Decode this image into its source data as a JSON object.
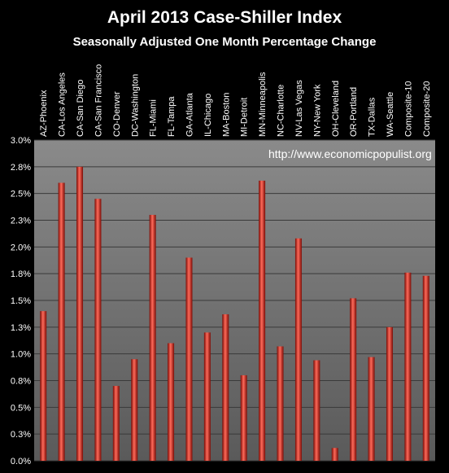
{
  "chart_data": {
    "type": "bar",
    "title": "April 2013 Case-Shiller Index",
    "subtitle": "Seasonally Adjusted One Month Percentage Change",
    "annotation": "http://www.economicpopulist.org",
    "categories": [
      "AZ-Phoenix",
      "CA-Los Angeles",
      "CA-San Diego",
      "CA-San Francisco",
      "CO-Denver",
      "DC-Washington",
      "FL-Miami",
      "FL-Tampa",
      "GA-Atlanta",
      "IL-Chicago",
      "MA-Boston",
      "MI-Detroit",
      "MN-Minneapolis",
      "NC-Charlotte",
      "NV-Las Vegas",
      "NY-New York",
      "OH-Cleveland",
      "OR-Portland",
      "TX-Dallas",
      "WA-Seattle",
      "Composite-10",
      "Composite-20"
    ],
    "values": [
      1.4,
      2.6,
      2.75,
      2.45,
      0.7,
      0.95,
      2.3,
      1.1,
      1.9,
      1.2,
      1.37,
      0.8,
      2.62,
      1.07,
      2.08,
      0.94,
      0.12,
      1.52,
      0.97,
      1.25,
      1.76,
      1.73
    ],
    "yticks": [
      "0.0%",
      "0.3%",
      "0.5%",
      "0.8%",
      "1.0%",
      "1.3%",
      "1.5%",
      "1.8%",
      "2.0%",
      "2.3%",
      "2.5%",
      "2.8%",
      "3.0%"
    ],
    "ylim": [
      0,
      3.0
    ],
    "grid": true,
    "colors": {
      "bar": "#cc2a1f",
      "bar_light": "#ff6a5a",
      "bar_dark": "#7a0c06",
      "plot_bg": "#7f7f7f",
      "grid": "#3a3a3a"
    }
  }
}
